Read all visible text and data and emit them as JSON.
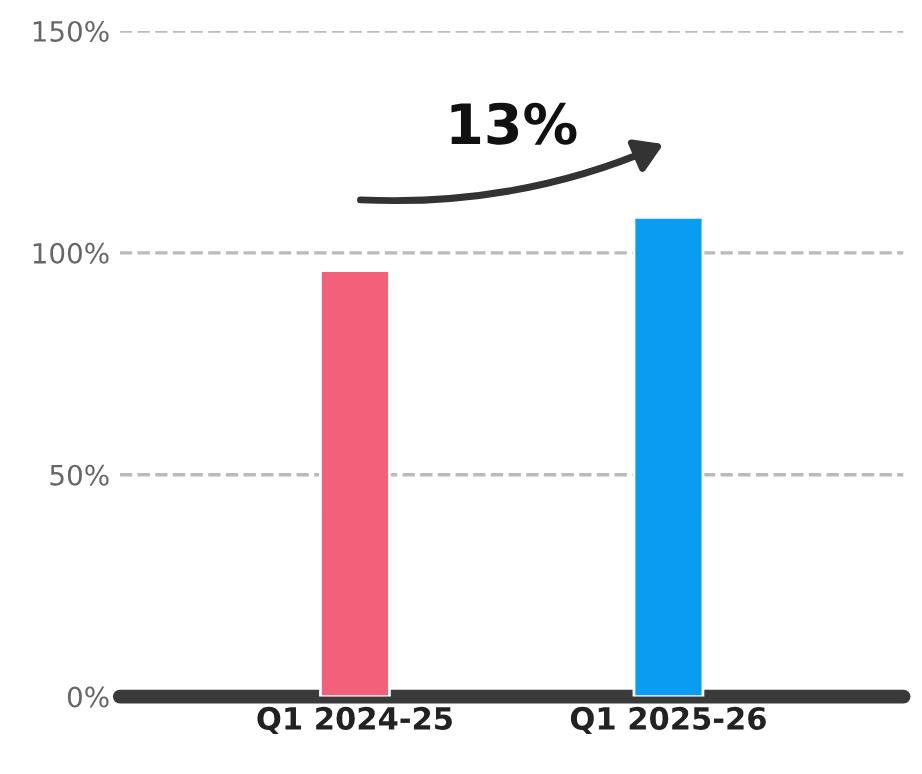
{
  "chart_data": {
    "type": "bar",
    "categories": [
      "Q1 2024-25",
      "Q1 2025-26"
    ],
    "values": [
      96,
      108
    ],
    "colors": [
      "#f2607a",
      "#0a9cf0"
    ],
    "ylim": [
      0,
      150
    ],
    "yticks": [
      {
        "value": 0,
        "label": "0%"
      },
      {
        "value": 50,
        "label": "50%"
      },
      {
        "value": 100,
        "label": "100%"
      },
      {
        "value": 150,
        "label": "150%"
      }
    ],
    "grid": "y",
    "annotations": [
      "13%"
    ]
  }
}
